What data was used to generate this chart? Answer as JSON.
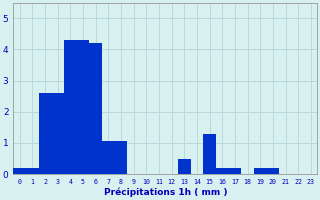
{
  "values": [
    0.2,
    0.2,
    2.6,
    2.6,
    4.3,
    4.3,
    4.2,
    1.05,
    1.05,
    0.0,
    0.0,
    0.0,
    0.0,
    0.5,
    0.0,
    1.3,
    0.2,
    0.2,
    0.0,
    0.2,
    0.2,
    0.0,
    0.0,
    0.0
  ],
  "bar_color": "#0033cc",
  "background_color": "#d8f0f0",
  "grid_color": "#b8dada",
  "xlabel": "Précipitations 1h ( mm )",
  "xlabel_color": "#0000bb",
  "tick_color": "#0000bb",
  "ylim": [
    0,
    5.5
  ],
  "yticks": [
    0,
    1,
    2,
    3,
    4,
    5
  ],
  "bar_width": 1.0
}
